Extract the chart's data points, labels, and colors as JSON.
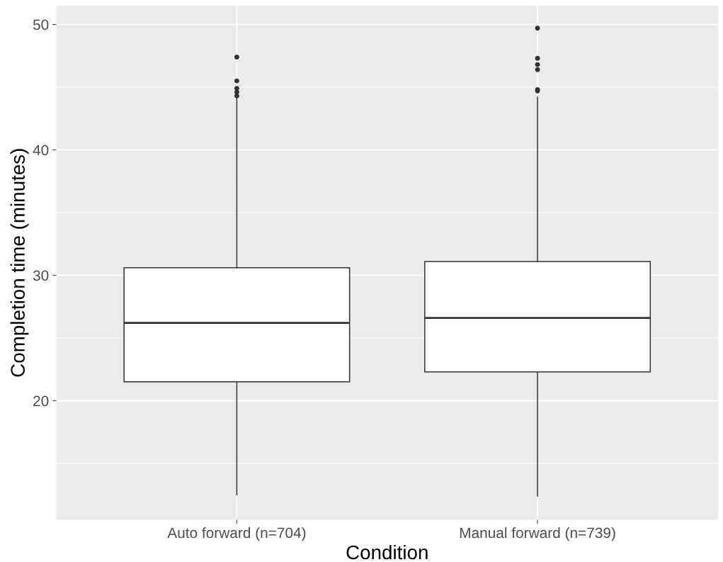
{
  "chart_data": {
    "type": "box",
    "xlabel": "Condition",
    "ylabel": "Completion time (minutes)",
    "categories": [
      "Auto forward (n=704)",
      "Manual forward (n=739)"
    ],
    "boxes": [
      {
        "low": 12.5,
        "q1": 21.5,
        "median": 26.2,
        "q3": 30.6,
        "high": 44.2,
        "outliers": [
          47.4,
          45.5,
          44.9,
          44.6,
          44.3
        ]
      },
      {
        "low": 12.4,
        "q1": 22.3,
        "median": 26.6,
        "q3": 31.1,
        "high": 44.2,
        "outliers": [
          49.7,
          47.3,
          46.8,
          46.4,
          44.8,
          44.7
        ]
      }
    ],
    "ylim": [
      10.5,
      51.5
    ],
    "yticks": [
      20,
      30,
      40,
      50
    ],
    "grid": true,
    "color": "#ffffff"
  }
}
